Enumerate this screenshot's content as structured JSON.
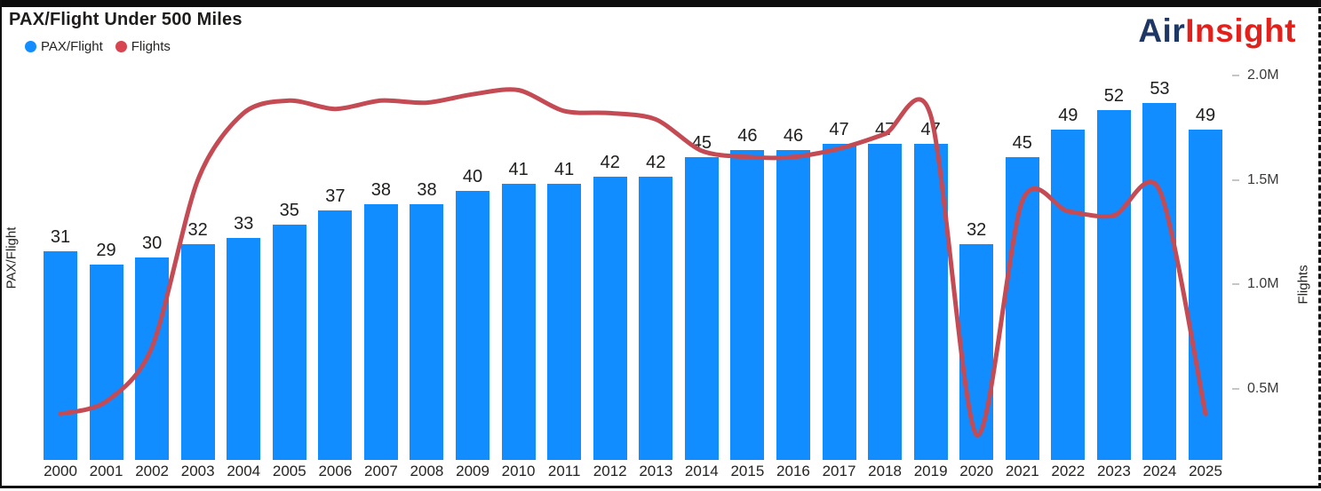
{
  "header": {
    "title": "PAX/Flight Under 500 Miles"
  },
  "legend": [
    {
      "label": "PAX/Flight",
      "color": "#118DFF"
    },
    {
      "label": "Flights",
      "color": "#D64550"
    }
  ],
  "logo": {
    "part1": "Air",
    "part2": "Insight",
    "part1_color": "#1e3765",
    "part2_color": "#e2211c"
  },
  "axes": {
    "left_title": "PAX/Flight",
    "right_title": "Flights",
    "right_ticks": [
      {
        "label": "0.5M",
        "value": 0.5
      },
      {
        "label": "1.0M",
        "value": 1.0
      },
      {
        "label": "1.5M",
        "value": 1.5
      },
      {
        "label": "2.0M",
        "value": 2.0
      }
    ]
  },
  "chart_data": {
    "type": "bar",
    "title": "PAX/Flight Under 500 Miles",
    "categories": [
      "2000",
      "2001",
      "2002",
      "2003",
      "2004",
      "2005",
      "2006",
      "2007",
      "2008",
      "2009",
      "2010",
      "2011",
      "2012",
      "2013",
      "2014",
      "2015",
      "2016",
      "2017",
      "2018",
      "2019",
      "2020",
      "2021",
      "2022",
      "2023",
      "2024",
      "2025"
    ],
    "series": [
      {
        "name": "PAX/Flight",
        "type": "bar",
        "axis": "left",
        "color": "#118DFF",
        "data_labels_shown": true,
        "values": [
          31,
          29,
          30,
          32,
          33,
          35,
          37,
          38,
          38,
          40,
          41,
          41,
          42,
          42,
          45,
          46,
          46,
          47,
          47,
          47,
          32,
          45,
          49,
          52,
          53,
          49
        ]
      },
      {
        "name": "Flights",
        "type": "line",
        "axis": "right",
        "color": "#C44A54",
        "unit": "millions",
        "values": [
          0.38,
          0.44,
          0.7,
          1.5,
          1.82,
          1.88,
          1.84,
          1.88,
          1.87,
          1.91,
          1.93,
          1.83,
          1.82,
          1.79,
          1.64,
          1.61,
          1.61,
          1.65,
          1.72,
          1.81,
          0.28,
          1.4,
          1.35,
          1.33,
          1.45,
          0.38
        ]
      }
    ],
    "xlabel": "",
    "ylabel_left": "PAX/Flight",
    "ylabel_right": "Flights",
    "right_axis_range": [
      0.25,
      2.1
    ],
    "right_axis_tick_labels": [
      "0.5M",
      "1.0M",
      "1.5M",
      "2.0M"
    ],
    "grid": false,
    "legend_position": "top-left"
  }
}
